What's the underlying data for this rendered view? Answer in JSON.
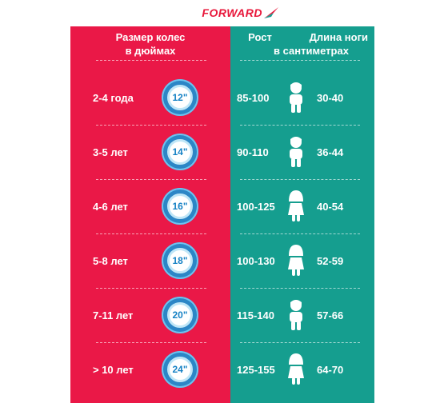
{
  "brand": {
    "name": "FORWARD",
    "color": "#e8173a"
  },
  "header": {
    "size_title_line1": "Размер колес",
    "size_title_line2": "в дюймах",
    "height_title": "Рост",
    "leg_title": "Длина ноги",
    "unit_title": "в сантиметрах"
  },
  "colors": {
    "left_panel": "#ea1847",
    "right_panel": "#159e8f",
    "wheel": "#2c86c6"
  },
  "rows": [
    {
      "age": "2-4 года",
      "wheel": "12\"",
      "height": "85-100",
      "leg": "30-40",
      "figure": "boy-icon"
    },
    {
      "age": "3-5 лет",
      "wheel": "14\"",
      "height": "90-110",
      "leg": "36-44",
      "figure": "boy-icon"
    },
    {
      "age": "4-6 лет",
      "wheel": "16\"",
      "height": "100-125",
      "leg": "40-54",
      "figure": "girl-icon"
    },
    {
      "age": "5-8 лет",
      "wheel": "18\"",
      "height": "100-130",
      "leg": "52-59",
      "figure": "girl-icon"
    },
    {
      "age": "7-11 лет",
      "wheel": "20\"",
      "height": "115-140",
      "leg": "57-66",
      "figure": "boy-icon"
    },
    {
      "age": "> 10 лет",
      "wheel": "24\"",
      "height": "125-155",
      "leg": "64-70",
      "figure": "girl-icon"
    }
  ]
}
